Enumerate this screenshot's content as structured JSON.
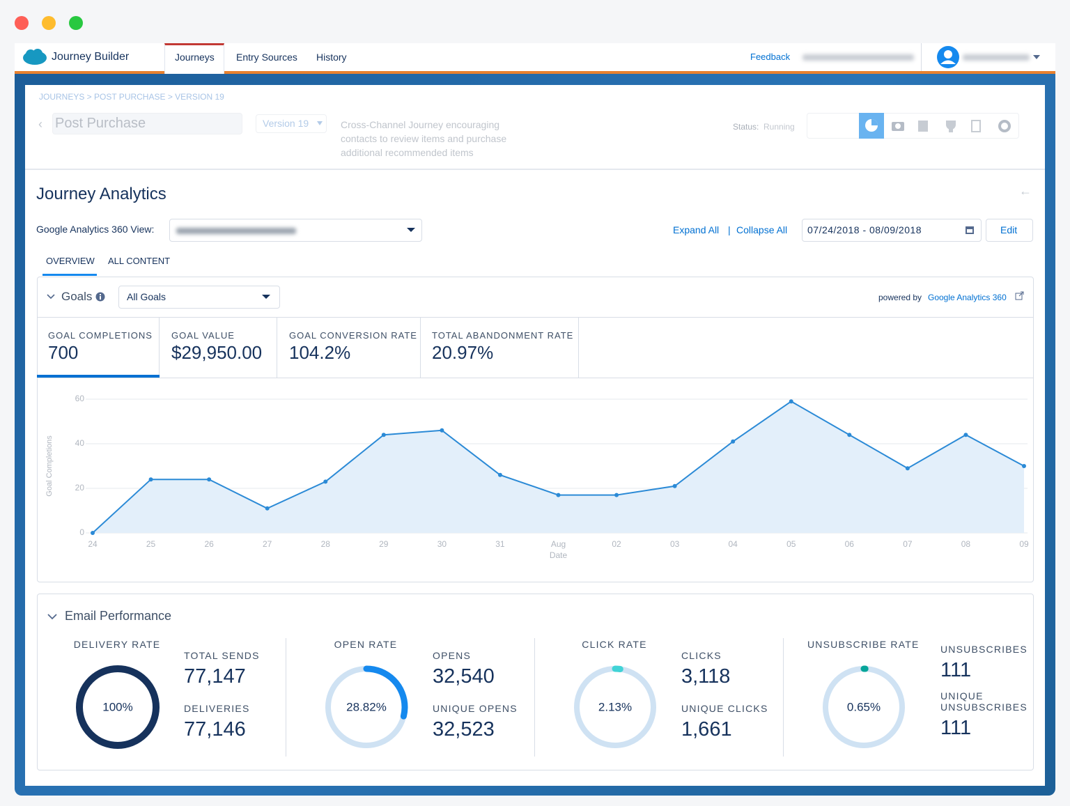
{
  "nav": {
    "app_title": "Journey Builder",
    "tabs": [
      "Journeys",
      "Entry Sources",
      "History"
    ],
    "feedback": "Feedback"
  },
  "header": {
    "breadcrumb": "JOURNEYS > POST PURCHASE > VERSION 19",
    "journey_name": "Post Purchase",
    "version": "Version 19",
    "description": "Cross-Channel Journey encouraging contacts to review items and purchase additional recommended items",
    "status_label": "Status:",
    "status": "Running"
  },
  "analytics": {
    "title": "Journey Analytics",
    "view_label": "Google Analytics 360 View:",
    "expand_all": "Expand All",
    "separator": "|",
    "collapse_all": "Collapse All",
    "date_range": "07/24/2018 - 08/09/2018",
    "edit": "Edit",
    "tabs": [
      "OVERVIEW",
      "ALL CONTENT"
    ]
  },
  "goals": {
    "title": "Goals",
    "select": "All Goals",
    "powered_by": "powered by",
    "powered_link": "Google Analytics 360",
    "kpis": [
      {
        "label": "GOAL COMPLETIONS",
        "value": "700"
      },
      {
        "label": "GOAL VALUE",
        "value": "$29,950.00"
      },
      {
        "label": "GOAL CONVERSION RATE",
        "value": "104.2%"
      },
      {
        "label": "TOTAL ABANDONMENT RATE",
        "value": "20.97%"
      }
    ]
  },
  "chart_data": {
    "type": "line",
    "x_label": "Date",
    "y_label": "Goal Completions",
    "categories": [
      "24",
      "25",
      "26",
      "27",
      "28",
      "29",
      "30",
      "31",
      "Aug",
      "02",
      "03",
      "04",
      "05",
      "06",
      "07",
      "08",
      "09"
    ],
    "values": [
      0,
      24,
      24,
      11,
      23,
      44,
      46,
      26,
      17,
      17,
      21,
      41,
      59,
      44,
      29,
      44,
      30
    ],
    "color": "#2b8ad6",
    "ylim": [
      0,
      60
    ],
    "yticks": [
      0,
      20,
      40,
      60
    ],
    "grid": true
  },
  "email": {
    "title": "Email Performance",
    "groups": [
      {
        "rate_title": "DELIVERY RATE",
        "rate": {
          "value": 100,
          "label": "100%"
        },
        "color": "#16325c",
        "metrics": [
          {
            "label": "TOTAL SENDS",
            "value": "77,147"
          },
          {
            "label": "DELIVERIES",
            "value": "77,146"
          }
        ]
      },
      {
        "rate_title": "OPEN RATE",
        "rate": {
          "value": 28.82,
          "label": "28.82%"
        },
        "color": "#1589ee",
        "metrics": [
          {
            "label": "OPENS",
            "value": "32,540"
          },
          {
            "label": "UNIQUE OPENS",
            "value": "32,523"
          }
        ]
      },
      {
        "rate_title": "CLICK RATE",
        "rate": {
          "value": 2.13,
          "label": "2.13%"
        },
        "color": "#41d3d6",
        "metrics": [
          {
            "label": "CLICKS",
            "value": "3,118"
          },
          {
            "label": "UNIQUE CLICKS",
            "value": "1,661"
          }
        ]
      },
      {
        "rate_title": "UNSUBSCRIBE RATE",
        "rate": {
          "value": 0.65,
          "label": "0.65%"
        },
        "color": "#06a59a",
        "metrics": [
          {
            "label": "UNSUBSCRIBES",
            "value": "111"
          },
          {
            "label": "UNIQUE UNSUBSCRIBES",
            "value": "111"
          }
        ]
      }
    ]
  }
}
